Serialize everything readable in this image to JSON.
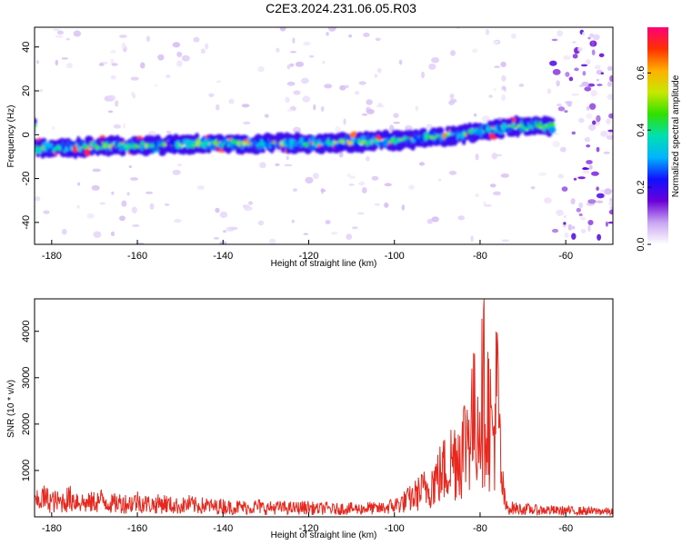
{
  "title": "C2E3.2024.231.06.05.R03",
  "chart_data": [
    {
      "type": "heatmap",
      "xlabel": "Height of straight line (km)",
      "ylabel": "Frequency (Hz)",
      "xlim": [
        -184,
        -49
      ],
      "ylim": [
        -50,
        49
      ],
      "xticks": [
        -180,
        -160,
        -140,
        -120,
        -100,
        -80,
        -60
      ],
      "yticks": [
        -40,
        -20,
        0,
        20,
        40
      ],
      "colorbar": {
        "label": "Normalized spectral amplitude",
        "range": [
          0,
          0.76
        ],
        "ticks": [
          0.0,
          0.2,
          0.4,
          0.6
        ],
        "colormap": [
          "#ffffff",
          "#c9a6f2",
          "#6a00d8",
          "#1010ff",
          "#00b4ff",
          "#00e0b0",
          "#30e000",
          "#c8e800",
          "#ffb000",
          "#ff3000",
          "#ff0078"
        ]
      },
      "ridge": [
        [
          -184,
          -6
        ],
        [
          -175,
          -6
        ],
        [
          -165,
          -5
        ],
        [
          -155,
          -5
        ],
        [
          -145,
          -4
        ],
        [
          -135,
          -4
        ],
        [
          -125,
          -4
        ],
        [
          -115,
          -4
        ],
        [
          -105,
          -3
        ],
        [
          -95,
          -2
        ],
        [
          -85,
          0
        ],
        [
          -78,
          2
        ],
        [
          -70,
          4
        ],
        [
          -64,
          4
        ]
      ],
      "grid": false
    },
    {
      "type": "line",
      "xlabel": "Height of straight line (km)",
      "ylabel": "SNR (10 * v/v)",
      "xlim": [
        -184,
        -49
      ],
      "ylim": [
        0,
        4700
      ],
      "xticks": [
        -180,
        -160,
        -140,
        -120,
        -100,
        -80,
        -60
      ],
      "yticks": [
        1000,
        2000,
        3000,
        4000
      ],
      "color": "#e8281e",
      "grid": false,
      "series": [
        {
          "x": [
            -184,
            -182,
            -180,
            -178,
            -176,
            -174,
            -172,
            -170,
            -168,
            -166,
            -164,
            -162,
            -160,
            -158,
            -156,
            -154,
            -152,
            -150,
            -148,
            -146,
            -144,
            -142,
            -140,
            -138,
            -136,
            -134,
            -132,
            -130,
            -128,
            -126,
            -124,
            -122,
            -120,
            -118,
            -116,
            -114,
            -112,
            -110,
            -108,
            -106,
            -104,
            -102,
            -100,
            -98,
            -96,
            -94,
            -92,
            -90,
            -88,
            -86,
            -84,
            -83,
            -82,
            -81,
            -80,
            -79,
            -78,
            -77,
            -76,
            -75,
            -74,
            -72,
            -70,
            -68,
            -66,
            -64,
            -62,
            -60,
            -58,
            -56,
            -54,
            -52,
            -50
          ],
          "y": [
            450,
            620,
            520,
            480,
            600,
            560,
            430,
            500,
            560,
            430,
            470,
            440,
            520,
            430,
            400,
            460,
            380,
            350,
            420,
            360,
            380,
            330,
            360,
            310,
            330,
            300,
            350,
            280,
            310,
            300,
            280,
            300,
            310,
            260,
            290,
            250,
            280,
            270,
            260,
            300,
            260,
            310,
            380,
            480,
            620,
            820,
            1000,
            1300,
            1600,
            2000,
            2300,
            2800,
            3300,
            3100,
            3700,
            4200,
            3500,
            2600,
            4100,
            1200,
            320,
            280,
            260,
            240,
            220,
            230,
            200,
            210,
            190,
            200,
            180,
            190,
            170
          ]
        }
      ]
    }
  ]
}
